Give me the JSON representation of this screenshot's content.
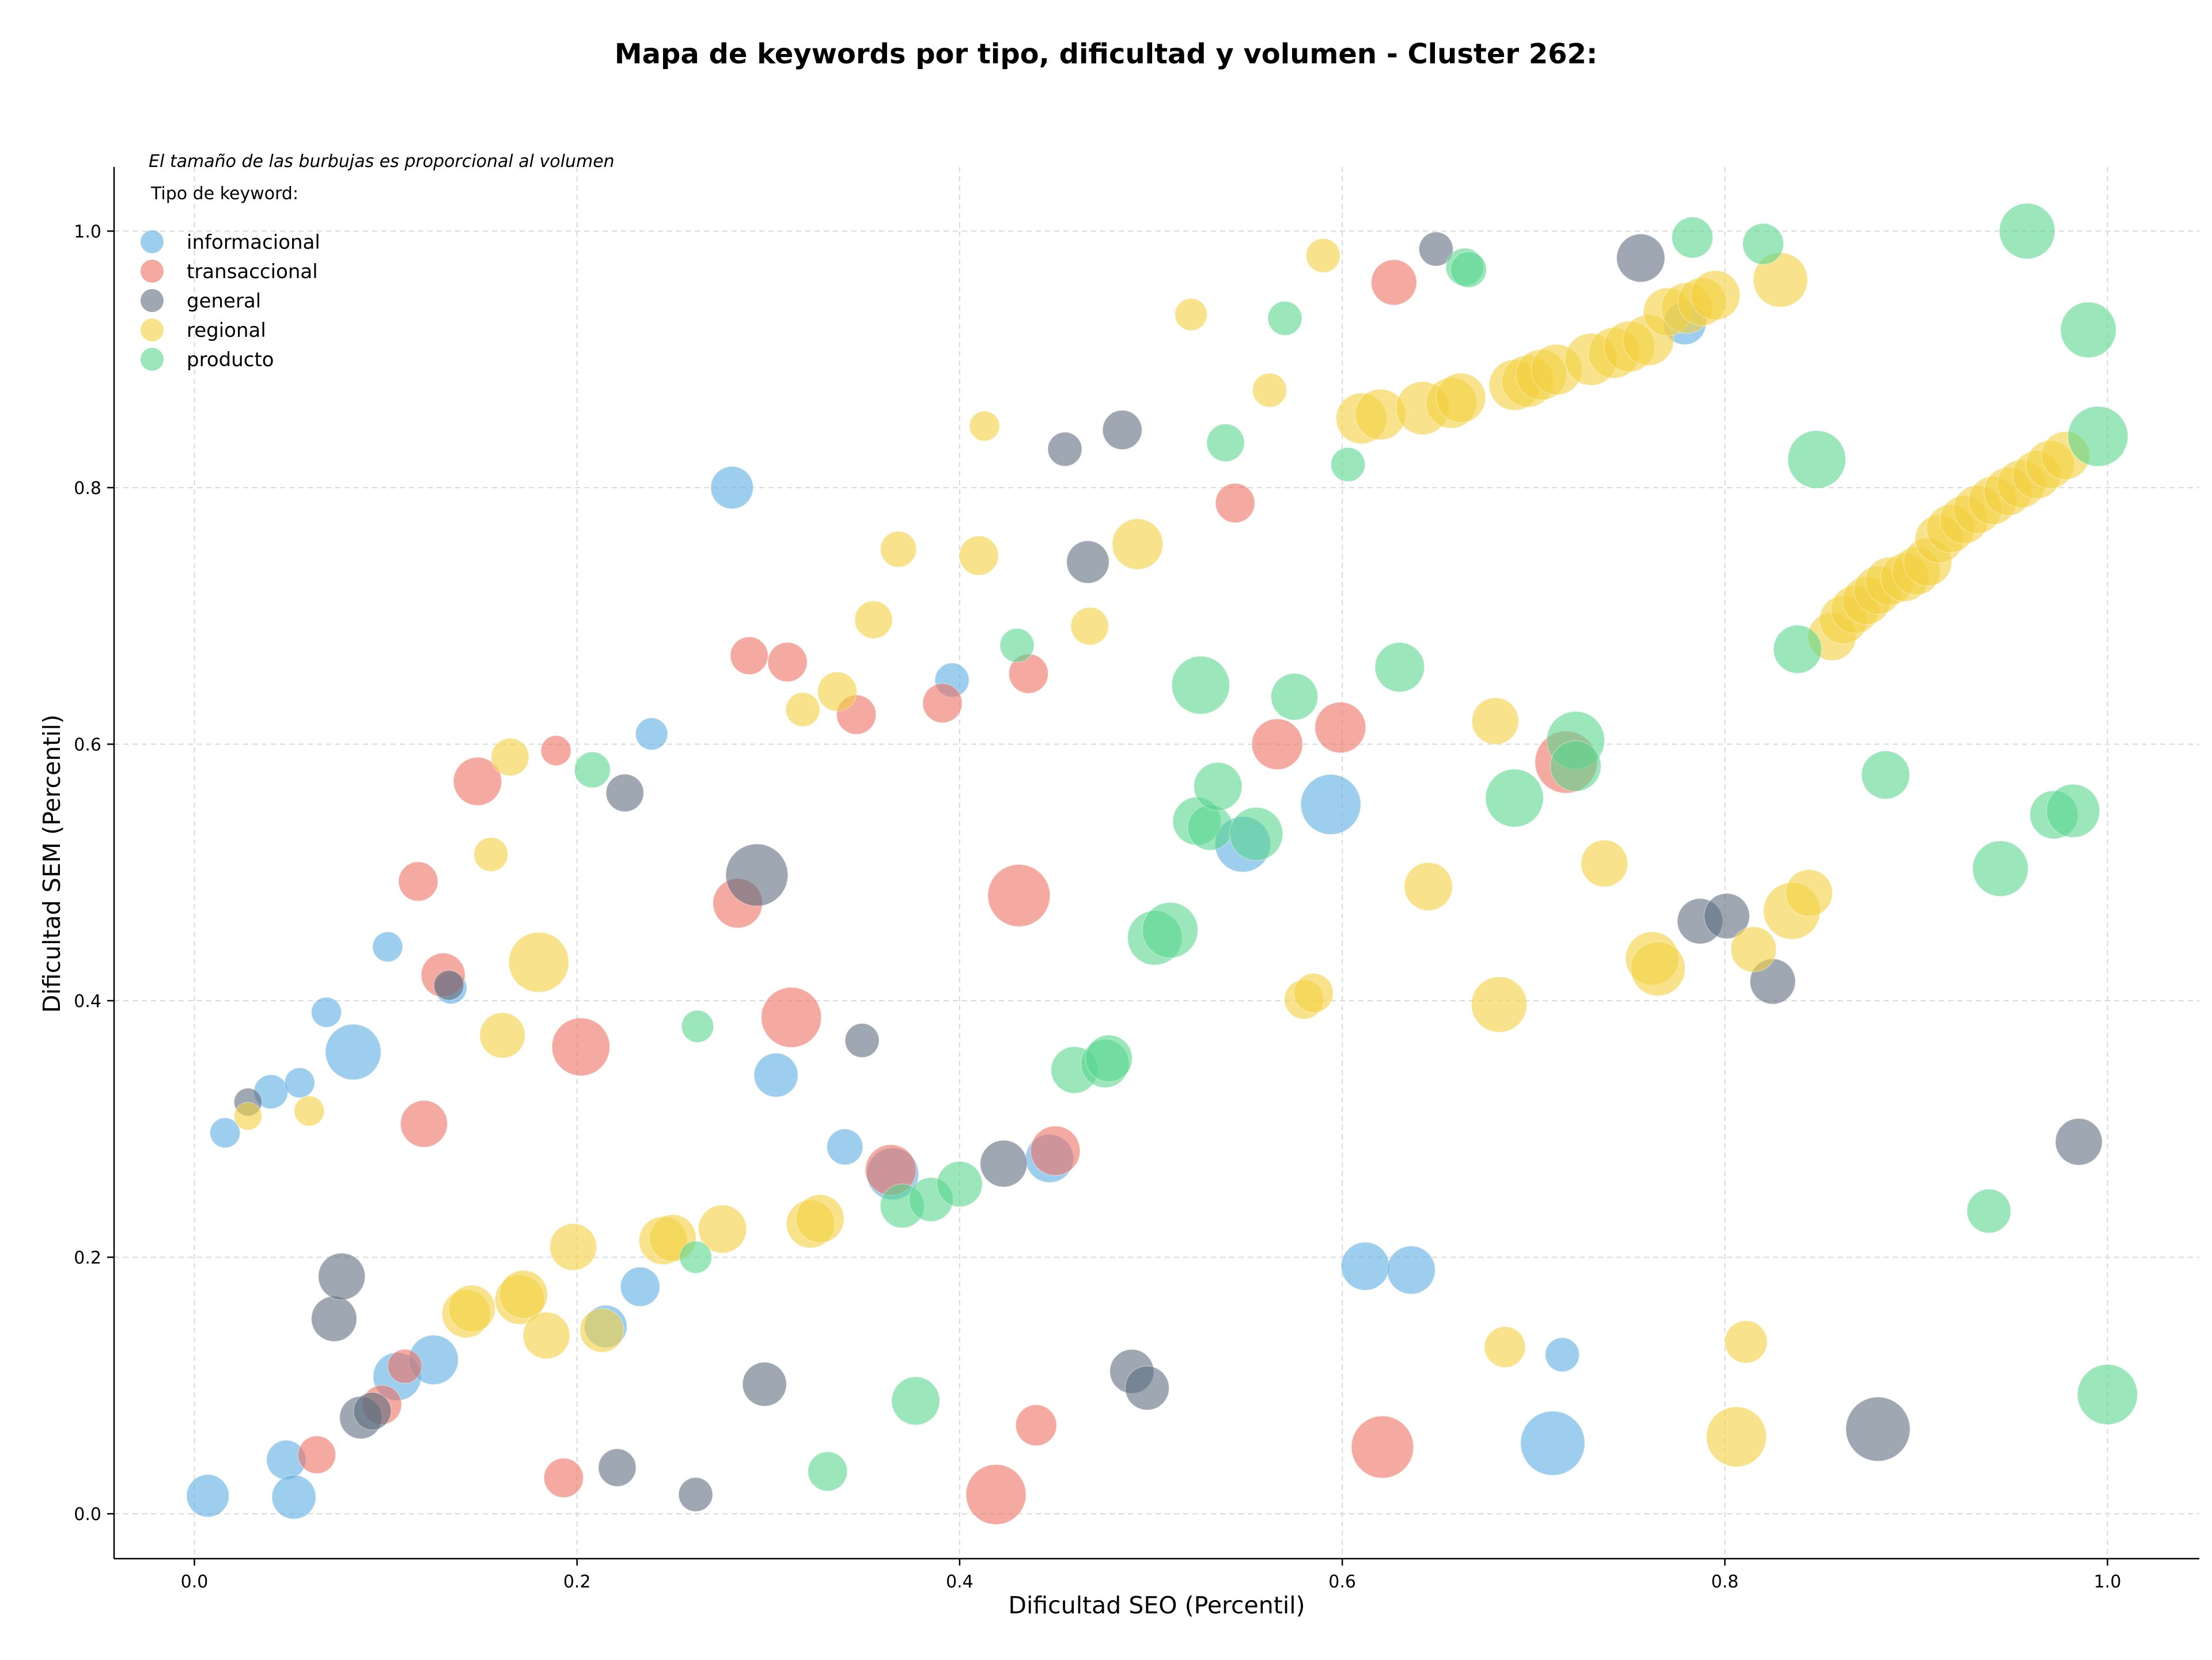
{
  "chart_data": {
    "type": "scatter",
    "title": "Mapa de keywords por tipo, dificultad y volumen - Cluster 262:",
    "xlabel": "Dificultad SEO (Percentil)",
    "ylabel": "Dificultad SEM (Percentil)",
    "xlim": [
      -0.042,
      1.048
    ],
    "ylim": [
      -0.035,
      1.05
    ],
    "xticks": [
      "0.0",
      "0.2",
      "0.4",
      "0.6",
      "0.8",
      "1.0"
    ],
    "yticks": [
      "0.0",
      "0.2",
      "0.4",
      "0.6",
      "0.8",
      "1.0"
    ],
    "grid": true,
    "legend_position": "top-left",
    "size_note": "El tamaño de las burbujas es proporcional al volumen",
    "legend_title": "Tipo de keyword:",
    "size_encoding": "volumen",
    "series": [
      {
        "name": "informacional",
        "color": "#5dade2",
        "points": [
          [
            0.007,
            0.014,
            0.7
          ],
          [
            0.016,
            0.297,
            0.35
          ],
          [
            0.04,
            0.329,
            0.45
          ],
          [
            0.048,
            0.042,
            0.6
          ],
          [
            0.052,
            0.013,
            0.75
          ],
          [
            0.055,
            0.336,
            0.35
          ],
          [
            0.069,
            0.391,
            0.35
          ],
          [
            0.083,
            0.36,
            1.2
          ],
          [
            0.101,
            0.442,
            0.35
          ],
          [
            0.106,
            0.107,
            0.9
          ],
          [
            0.125,
            0.12,
            0.95
          ],
          [
            0.134,
            0.41,
            0.4
          ],
          [
            0.215,
            0.146,
            0.7
          ],
          [
            0.233,
            0.177,
            0.6
          ],
          [
            0.239,
            0.608,
            0.4
          ],
          [
            0.281,
            0.8,
            0.7
          ],
          [
            0.304,
            0.342,
            0.75
          ],
          [
            0.34,
            0.286,
            0.5
          ],
          [
            0.365,
            0.265,
            1.05
          ],
          [
            0.396,
            0.65,
            0.45
          ],
          [
            0.447,
            0.277,
            0.9
          ],
          [
            0.548,
            0.522,
            1.2
          ],
          [
            0.594,
            0.553,
            1.4
          ],
          [
            0.612,
            0.193,
            0.9
          ],
          [
            0.636,
            0.19,
            0.9
          ],
          [
            0.71,
            0.055,
            1.6
          ],
          [
            0.715,
            0.124,
            0.45
          ],
          [
            0.779,
            0.928,
            0.7
          ]
        ]
      },
      {
        "name": "transaccional",
        "color": "#ec7063",
        "points": [
          [
            0.064,
            0.046,
            0.55
          ],
          [
            0.098,
            0.085,
            0.6
          ],
          [
            0.11,
            0.115,
            0.45
          ],
          [
            0.117,
            0.493,
            0.6
          ],
          [
            0.12,
            0.304,
            0.85
          ],
          [
            0.13,
            0.42,
            0.75
          ],
          [
            0.148,
            0.571,
            0.9
          ],
          [
            0.189,
            0.595,
            0.35
          ],
          [
            0.193,
            0.028,
            0.6
          ],
          [
            0.202,
            0.364,
            1.3
          ],
          [
            0.284,
            0.476,
            0.95
          ],
          [
            0.29,
            0.669,
            0.55
          ],
          [
            0.31,
            0.664,
            0.6
          ],
          [
            0.312,
            0.387,
            1.4
          ],
          [
            0.346,
            0.623,
            0.6
          ],
          [
            0.364,
            0.268,
            1.0
          ],
          [
            0.391,
            0.632,
            0.6
          ],
          [
            0.419,
            0.015,
            1.4
          ],
          [
            0.431,
            0.482,
            1.5
          ],
          [
            0.436,
            0.655,
            0.6
          ],
          [
            0.44,
            0.069,
            0.65
          ],
          [
            0.45,
            0.283,
            0.95
          ],
          [
            0.544,
            0.788,
            0.6
          ],
          [
            0.566,
            0.6,
            1.0
          ],
          [
            0.599,
            0.613,
            1.0
          ],
          [
            0.621,
            0.052,
            1.5
          ],
          [
            0.627,
            0.96,
            0.8
          ],
          [
            0.717,
            0.586,
            1.5
          ]
        ]
      },
      {
        "name": "general",
        "color": "#5d6d7e",
        "points": [
          [
            0.028,
            0.321,
            0.3
          ],
          [
            0.073,
            0.152,
            0.8
          ],
          [
            0.077,
            0.185,
            0.85
          ],
          [
            0.087,
            0.075,
            0.7
          ],
          [
            0.093,
            0.08,
            0.55
          ],
          [
            0.133,
            0.412,
            0.35
          ],
          [
            0.221,
            0.036,
            0.55
          ],
          [
            0.225,
            0.562,
            0.55
          ],
          [
            0.262,
            0.015,
            0.45
          ],
          [
            0.298,
            0.101,
            0.75
          ],
          [
            0.294,
            0.498,
            1.5
          ],
          [
            0.349,
            0.369,
            0.45
          ],
          [
            0.423,
            0.273,
            0.85
          ],
          [
            0.455,
            0.83,
            0.45
          ],
          [
            0.467,
            0.742,
            0.7
          ],
          [
            0.485,
            0.845,
            0.6
          ],
          [
            0.49,
            0.111,
            0.75
          ],
          [
            0.498,
            0.098,
            0.75
          ],
          [
            0.649,
            0.986,
            0.45
          ],
          [
            0.756,
            0.979,
            0.9
          ],
          [
            0.787,
            0.462,
            0.8
          ],
          [
            0.801,
            0.466,
            0.8
          ],
          [
            0.825,
            0.415,
            0.8
          ],
          [
            0.88,
            0.066,
            1.6
          ],
          [
            0.985,
            0.29,
            0.85
          ]
        ]
      },
      {
        "name": "regional",
        "color": "#f4d03f",
        "points": [
          [
            0.028,
            0.31,
            0.3
          ],
          [
            0.06,
            0.314,
            0.35
          ],
          [
            0.142,
            0.156,
            0.9
          ],
          [
            0.145,
            0.16,
            0.85
          ],
          [
            0.155,
            0.514,
            0.45
          ],
          [
            0.161,
            0.373,
            0.8
          ],
          [
            0.165,
            0.59,
            0.55
          ],
          [
            0.17,
            0.167,
            0.95
          ],
          [
            0.172,
            0.171,
            0.9
          ],
          [
            0.18,
            0.43,
            1.4
          ],
          [
            0.184,
            0.139,
            0.85
          ],
          [
            0.198,
            0.208,
            0.85
          ],
          [
            0.213,
            0.143,
            0.75
          ],
          [
            0.245,
            0.213,
            0.9
          ],
          [
            0.25,
            0.215,
            0.85
          ],
          [
            0.276,
            0.222,
            0.9
          ],
          [
            0.318,
            0.627,
            0.45
          ],
          [
            0.322,
            0.226,
            0.9
          ],
          [
            0.327,
            0.23,
            0.9
          ],
          [
            0.336,
            0.641,
            0.6
          ],
          [
            0.355,
            0.697,
            0.55
          ],
          [
            0.368,
            0.752,
            0.5
          ],
          [
            0.41,
            0.747,
            0.6
          ],
          [
            0.413,
            0.848,
            0.35
          ],
          [
            0.468,
            0.692,
            0.55
          ],
          [
            0.493,
            0.756,
            1.0
          ],
          [
            0.521,
            0.935,
            0.4
          ],
          [
            0.562,
            0.876,
            0.45
          ],
          [
            0.58,
            0.401,
            0.6
          ],
          [
            0.585,
            0.406,
            0.6
          ],
          [
            0.59,
            0.981,
            0.45
          ],
          [
            0.61,
            0.854,
            1.0
          ],
          [
            0.62,
            0.857,
            1.0
          ],
          [
            0.642,
            0.862,
            1.1
          ],
          [
            0.645,
            0.489,
            0.9
          ],
          [
            0.657,
            0.866,
            1.0
          ],
          [
            0.662,
            0.87,
            0.95
          ],
          [
            0.68,
            0.618,
            0.85
          ],
          [
            0.682,
            0.397,
            1.2
          ],
          [
            0.685,
            0.13,
            0.65
          ],
          [
            0.69,
            0.88,
            1.0
          ],
          [
            0.697,
            0.883,
            1.05
          ],
          [
            0.704,
            0.888,
            1.0
          ],
          [
            0.712,
            0.892,
            1.0
          ],
          [
            0.73,
            0.9,
            1.05
          ],
          [
            0.737,
            0.507,
            0.85
          ],
          [
            0.742,
            0.905,
            1.0
          ],
          [
            0.75,
            0.91,
            1.0
          ],
          [
            0.76,
            0.915,
            1.0
          ],
          [
            0.762,
            0.433,
            1.1
          ],
          [
            0.765,
            0.425,
            1.15
          ],
          [
            0.77,
            0.937,
            0.9
          ],
          [
            0.78,
            0.94,
            1.0
          ],
          [
            0.788,
            0.945,
            0.9
          ],
          [
            0.795,
            0.95,
            0.95
          ],
          [
            0.806,
            0.06,
            1.4
          ],
          [
            0.811,
            0.134,
            0.7
          ],
          [
            0.815,
            0.44,
            0.8
          ],
          [
            0.829,
            0.962,
            1.15
          ],
          [
            0.835,
            0.47,
            1.25
          ],
          [
            0.844,
            0.484,
            0.85
          ],
          [
            0.856,
            0.684,
            0.9
          ],
          [
            0.862,
            0.697,
            0.9
          ],
          [
            0.868,
            0.705,
            0.9
          ],
          [
            0.874,
            0.712,
            0.9
          ],
          [
            0.88,
            0.72,
            0.9
          ],
          [
            0.886,
            0.727,
            0.9
          ],
          [
            0.894,
            0.73,
            0.9
          ],
          [
            0.9,
            0.735,
            0.9
          ],
          [
            0.906,
            0.742,
            0.9
          ],
          [
            0.912,
            0.76,
            0.9
          ],
          [
            0.918,
            0.768,
            0.9
          ],
          [
            0.925,
            0.775,
            0.9
          ],
          [
            0.932,
            0.783,
            0.9
          ],
          [
            0.94,
            0.79,
            0.9
          ],
          [
            0.948,
            0.797,
            0.9
          ],
          [
            0.955,
            0.803,
            0.9
          ],
          [
            0.963,
            0.81,
            0.9
          ],
          [
            0.97,
            0.818,
            0.9
          ],
          [
            0.978,
            0.825,
            0.9
          ]
        ]
      },
      {
        "name": "producto",
        "color": "#58d68d",
        "points": [
          [
            0.208,
            0.58,
            0.5
          ],
          [
            0.262,
            0.2,
            0.4
          ],
          [
            0.263,
            0.38,
            0.4
          ],
          [
            0.331,
            0.033,
            0.6
          ],
          [
            0.37,
            0.24,
            0.75
          ],
          [
            0.377,
            0.088,
            0.9
          ],
          [
            0.385,
            0.245,
            0.75
          ],
          [
            0.4,
            0.257,
            0.8
          ],
          [
            0.43,
            0.677,
            0.45
          ],
          [
            0.46,
            0.346,
            0.85
          ],
          [
            0.476,
            0.351,
            0.9
          ],
          [
            0.478,
            0.355,
            0.85
          ],
          [
            0.502,
            0.449,
            1.15
          ],
          [
            0.51,
            0.455,
            1.2
          ],
          [
            0.524,
            0.54,
            0.9
          ],
          [
            0.526,
            0.646,
            1.3
          ],
          [
            0.531,
            0.535,
            0.8
          ],
          [
            0.535,
            0.567,
            0.9
          ],
          [
            0.539,
            0.835,
            0.55
          ],
          [
            0.555,
            0.53,
            1.1
          ],
          [
            0.57,
            0.932,
            0.45
          ],
          [
            0.575,
            0.637,
            0.85
          ],
          [
            0.603,
            0.818,
            0.45
          ],
          [
            0.63,
            0.66,
            0.95
          ],
          [
            0.664,
            0.972,
            0.55
          ],
          [
            0.666,
            0.97,
            0.5
          ],
          [
            0.69,
            0.558,
            1.3
          ],
          [
            0.722,
            0.603,
            1.3
          ],
          [
            0.722,
            0.583,
            1.0
          ],
          [
            0.783,
            0.995,
            0.65
          ],
          [
            0.82,
            0.99,
            0.65
          ],
          [
            0.838,
            0.674,
            0.9
          ],
          [
            0.848,
            0.822,
            1.3
          ],
          [
            0.884,
            0.576,
            0.9
          ],
          [
            0.938,
            0.236,
            0.75
          ],
          [
            0.944,
            0.503,
            1.2
          ],
          [
            0.958,
            1.0,
            1.2
          ],
          [
            0.972,
            0.545,
            0.9
          ],
          [
            0.982,
            0.548,
            1.1
          ],
          [
            0.99,
            0.923,
            1.2
          ],
          [
            0.995,
            0.84,
            1.4
          ],
          [
            1.0,
            0.093,
            1.4
          ]
        ]
      }
    ]
  }
}
